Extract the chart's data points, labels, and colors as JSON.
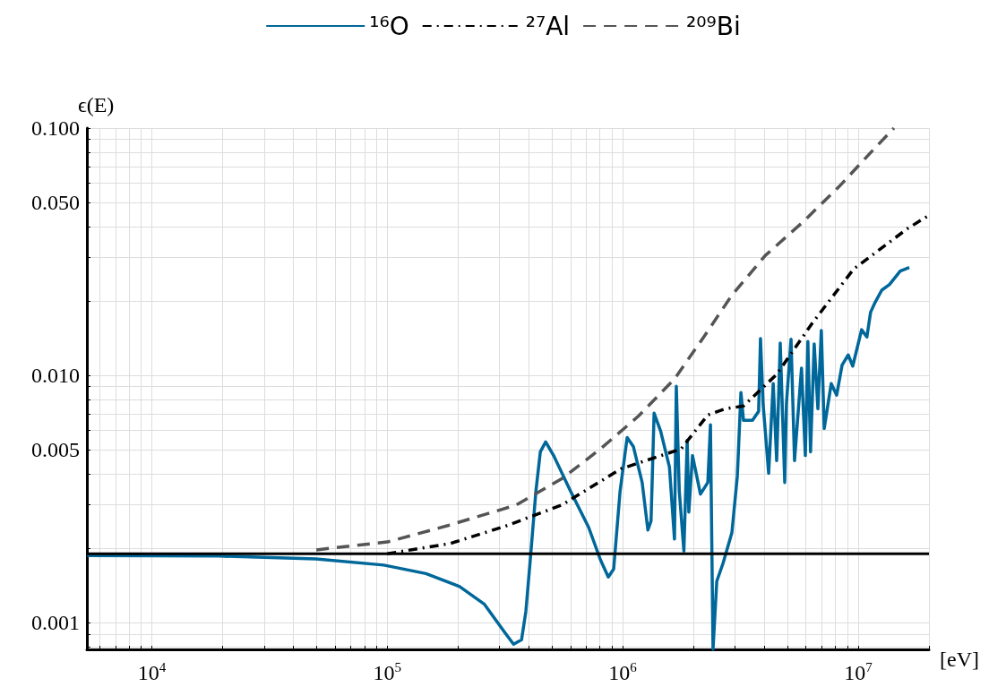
{
  "chart_data": {
    "type": "line",
    "ylabel": "ϵ(E)",
    "xlabel": "[eV]",
    "log": "xy",
    "grid": true,
    "legend": "top",
    "marker": "none",
    "xlim": [
      5300,
      20000000
    ],
    "xticks": [
      {
        "value": 6000,
        "label": null
      },
      {
        "value": 7000,
        "label": null
      },
      {
        "value": 8000,
        "label": null
      },
      {
        "value": 9000,
        "label": null
      },
      {
        "value": 10000,
        "label": "10$^{4}$"
      },
      {
        "value": 20000,
        "label": null
      },
      {
        "value": 30000,
        "label": null
      },
      {
        "value": 40000,
        "label": null
      },
      {
        "value": 50000,
        "label": null
      },
      {
        "value": 60000,
        "label": null
      },
      {
        "value": 70000,
        "label": null
      },
      {
        "value": 80000,
        "label": null
      },
      {
        "value": 90000,
        "label": null
      },
      {
        "value": 100000,
        "label": "10$^{5}$"
      },
      {
        "value": 200000,
        "label": null
      },
      {
        "value": 300000,
        "label": null
      },
      {
        "value": 400000,
        "label": null
      },
      {
        "value": 500000,
        "label": null
      },
      {
        "value": 600000,
        "label": null
      },
      {
        "value": 700000,
        "label": null
      },
      {
        "value": 800000,
        "label": null
      },
      {
        "value": 900000,
        "label": null
      },
      {
        "value": 1000000,
        "label": "10$^{6}$"
      },
      {
        "value": 2000000,
        "label": null
      },
      {
        "value": 3000000,
        "label": null
      },
      {
        "value": 4000000,
        "label": null
      },
      {
        "value": 5000000,
        "label": null
      },
      {
        "value": 6000000,
        "label": null
      },
      {
        "value": 7000000,
        "label": null
      },
      {
        "value": 8000000,
        "label": null
      },
      {
        "value": 9000000,
        "label": null
      },
      {
        "value": 10000000,
        "label": "10$^{7}$"
      },
      {
        "value": 20000000,
        "label": null
      }
    ],
    "ylim": [
      0.00078,
      0.1
    ],
    "yticks": [
      {
        "value": 0.0008,
        "label": null
      },
      {
        "value": 0.0009,
        "label": null
      },
      0.001,
      {
        "value": 0.002,
        "label": null
      },
      {
        "value": 0.003,
        "label": null
      },
      {
        "value": 0.004,
        "label": null
      },
      0.005,
      {
        "value": 0.006,
        "label": null
      },
      {
        "value": 0.007,
        "label": null
      },
      {
        "value": 0.008,
        "label": null
      },
      {
        "value": 0.009,
        "label": null
      },
      {
        "value": 0.01,
        "label": "0.010"
      },
      {
        "value": 0.02,
        "label": null
      },
      {
        "value": 0.03,
        "label": null
      },
      {
        "value": 0.04,
        "label": null
      },
      {
        "value": 0.05,
        "label": "0.050"
      },
      {
        "value": 0.06,
        "label": null
      },
      {
        "value": 0.07,
        "label": null
      },
      {
        "value": 0.08,
        "label": null
      },
      {
        "value": 0.09,
        "label": null
      },
      {
        "value": 0.1,
        "label": "0.100"
      }
    ],
    "ref_lines": [
      {
        "axis": "y",
        "value": 0.0019,
        "label": null,
        "color": "#000000"
      }
    ],
    "series": [
      {
        "name": "¹⁶O",
        "color": "#00679a",
        "line_style": "solid",
        "x": [
          5320,
          19300,
          49700,
          96600,
          146000,
          203000,
          258000,
          318000,
          344000,
          372000,
          388000,
          406000,
          428000,
          447000,
          471000,
          509000,
          601000,
          717000,
          804000,
          869000,
          916000,
          975000,
          1045000,
          1110000,
          1210000,
          1280000,
          1320000,
          1360000,
          1450000,
          1580000,
          1660000,
          1690000,
          1740000,
          1820000,
          1880000,
          1910000,
          1980000,
          2140000,
          2300000,
          2360000,
          2420000,
          2510000,
          2670000,
          2910000,
          3070000,
          3180000,
          3260000,
          3560000,
          3780000,
          3850000,
          3950000,
          4170000,
          4360000,
          4510000,
          4670000,
          4880000,
          4960000,
          5190000,
          5370000,
          5750000,
          5970000,
          6120000,
          6280000,
          6510000,
          6750000,
          6980000,
          7180000,
          7690000,
          8110000,
          8550000,
          9080000,
          9490000,
          10350000,
          10900000,
          11300000,
          11800000,
          12600000,
          13600000,
          15100000,
          16500000
        ],
        "values": [
          0.00187,
          0.00186,
          0.00181,
          0.00171,
          0.00158,
          0.0014,
          0.00119,
          0.000904,
          0.000818,
          0.000853,
          0.00111,
          0.00184,
          0.0034,
          0.00491,
          0.00538,
          0.00474,
          0.0034,
          0.00243,
          0.0018,
          0.00153,
          0.00165,
          0.0034,
          0.00561,
          0.00516,
          0.00369,
          0.00237,
          0.00258,
          0.00703,
          0.00595,
          0.00426,
          0.00218,
          0.00904,
          0.0034,
          0.00195,
          0.00547,
          0.0028,
          0.00474,
          0.00331,
          0.00369,
          0.00631,
          0.00078,
          0.00147,
          0.00174,
          0.00231,
          0.00392,
          0.00853,
          0.00658,
          0.00658,
          0.00716,
          0.0141,
          0.00765,
          0.00402,
          0.00927,
          0.00452,
          0.0135,
          0.00369,
          0.00765,
          0.014,
          0.00452,
          0.0107,
          0.00474,
          0.0137,
          0.00491,
          0.0134,
          0.00733,
          0.0152,
          0.0061,
          0.00927,
          0.00832,
          0.011,
          0.0121,
          0.0109,
          0.0153,
          0.0143,
          0.018,
          0.0197,
          0.0221,
          0.0233,
          0.0264,
          0.0273
        ]
      },
      {
        "name": "²⁷Al",
        "color": "#000000",
        "line_style": "dashdot",
        "x": [
          100000,
          185000,
          315000,
          551000,
          983000,
          1770000,
          2300000,
          2740000,
          3260000,
          4510000,
          6400000,
          9570000,
          16200000,
          20000000
        ],
        "values": [
          0.0019,
          0.00209,
          0.00245,
          0.00299,
          0.00419,
          0.00504,
          0.00692,
          0.00733,
          0.00752,
          0.0101,
          0.0163,
          0.0269,
          0.0392,
          0.0444
        ]
      },
      {
        "name": "²⁰⁹Bi",
        "color": "#555555",
        "line_style": "dashed",
        "x": [
          50000,
          100000,
          181000,
          353000,
          551000,
          804000,
          1170000,
          1660000,
          2200000,
          2910000,
          4030000,
          5860000,
          8320000,
          11700000,
          14200000
        ],
        "values": [
          0.00197,
          0.00212,
          0.00247,
          0.00299,
          0.00382,
          0.00504,
          0.00686,
          0.00967,
          0.0142,
          0.0211,
          0.0305,
          0.0419,
          0.0581,
          0.0824,
          0.1
        ]
      }
    ]
  }
}
